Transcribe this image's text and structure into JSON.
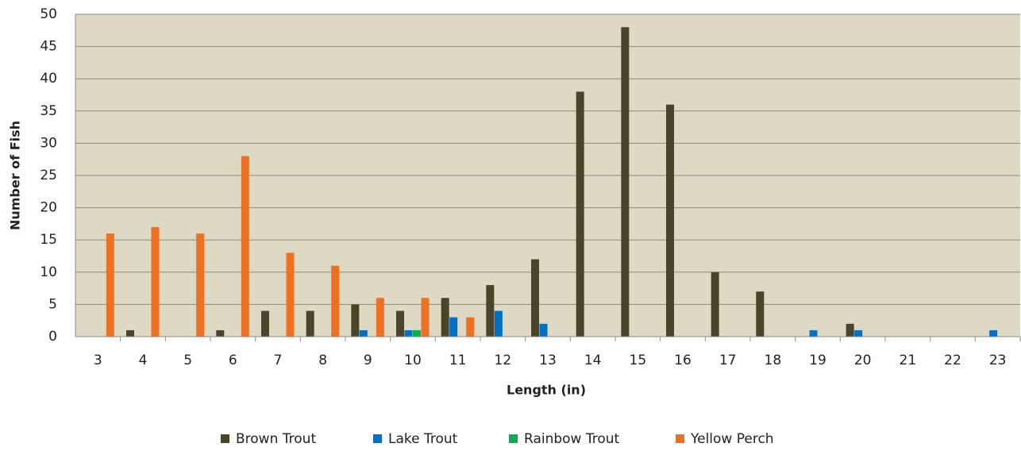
{
  "chart_data": {
    "type": "bar",
    "x_label": "Length (in)",
    "y_label": "Number of Fish",
    "categories": [
      "3",
      "4",
      "5",
      "6",
      "7",
      "8",
      "9",
      "10",
      "11",
      "12",
      "13",
      "14",
      "15",
      "16",
      "17",
      "18",
      "19",
      "20",
      "21",
      "22",
      "23"
    ],
    "series": [
      {
        "name": "Brown Trout",
        "color": "#4a452a",
        "values": [
          0,
          1,
          0,
          1,
          4,
          4,
          5,
          4,
          6,
          8,
          12,
          38,
          48,
          36,
          10,
          7,
          0,
          2,
          0,
          0,
          0
        ]
      },
      {
        "name": "Lake Trout",
        "color": "#0070c0",
        "values": [
          0,
          0,
          0,
          0,
          0,
          0,
          1,
          1,
          3,
          4,
          2,
          0,
          0,
          0,
          0,
          0,
          1,
          1,
          0,
          0,
          1
        ]
      },
      {
        "name": "Rainbow Trout",
        "color": "#00b050",
        "values": [
          0,
          0,
          0,
          0,
          0,
          0,
          0,
          1,
          0,
          0,
          0,
          0,
          0,
          0,
          0,
          0,
          0,
          0,
          0,
          0,
          0
        ]
      },
      {
        "name": "Yellow Perch",
        "color": "#ee7022",
        "values": [
          16,
          17,
          16,
          28,
          13,
          11,
          6,
          6,
          3,
          0,
          0,
          0,
          0,
          0,
          0,
          0,
          0,
          0,
          0,
          0,
          0
        ]
      }
    ],
    "ylim": [
      0,
      50
    ],
    "yticks": [
      0,
      5,
      10,
      15,
      20,
      25,
      30,
      35,
      40,
      45,
      50
    ],
    "grid": true,
    "legend": "bottom"
  }
}
